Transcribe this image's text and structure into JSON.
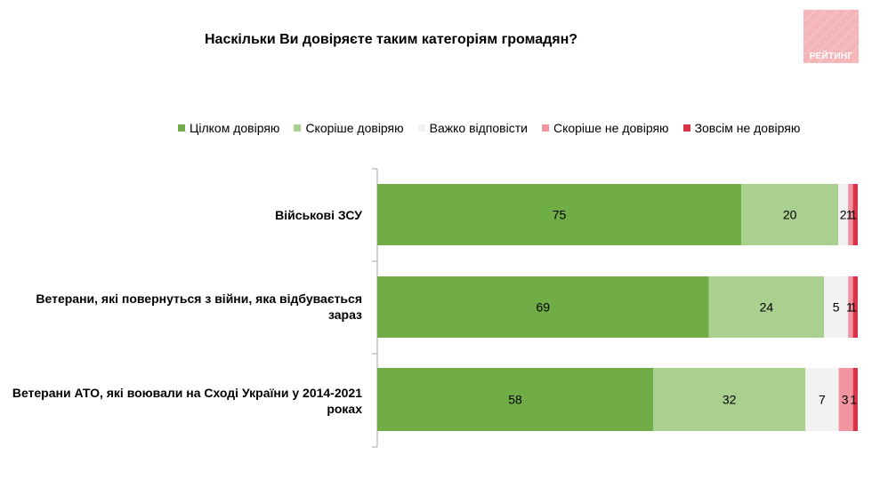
{
  "title": "Наскільки Ви довіряєте таким категоріям громадян?",
  "logo_text": "РЕЙТИНГ",
  "colors": {
    "full_trust": "#70ad47",
    "rather_trust": "#a9d08e",
    "hard_to_say": "#f2f2f2",
    "rather_distrust": "#f0959f",
    "full_distrust": "#d9334a"
  },
  "chart_data": {
    "type": "bar",
    "orientation": "horizontal",
    "stacked": true,
    "title": "Наскільки Ви довіряєте таким категоріям громадян?",
    "legend_position": "top",
    "xlim": [
      0,
      100
    ],
    "categories": [
      "Військові ЗСУ",
      "Ветерани, які повернуться з війни, яка відбувається зараз",
      "Ветерани АТО, які воювали на Сході України у 2014-2021 роках"
    ],
    "series": [
      {
        "name": "Цілком довіряю",
        "color": "#70ad47",
        "values": [
          75,
          69,
          58
        ]
      },
      {
        "name": "Скоріше довіряю",
        "color": "#a9d08e",
        "values": [
          20,
          24,
          32
        ]
      },
      {
        "name": "Важко відповісти",
        "color": "#f2f2f2",
        "values": [
          2,
          5,
          7
        ]
      },
      {
        "name": "Скоріше не довіряю",
        "color": "#f0959f",
        "values": [
          1,
          1,
          3
        ]
      },
      {
        "name": "Зовсім не довіряю",
        "color": "#d9334a",
        "values": [
          1,
          1,
          1
        ]
      }
    ]
  }
}
